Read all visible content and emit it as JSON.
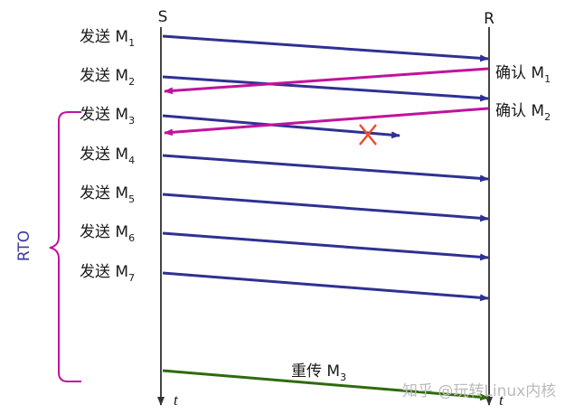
{
  "sender": "S",
  "receiver": "R",
  "sends": [
    {
      "text": "发送 M",
      "sub": "1"
    },
    {
      "text": "发送 M",
      "sub": "2"
    },
    {
      "text": "发送 M",
      "sub": "3"
    },
    {
      "text": "发送 M",
      "sub": "4"
    },
    {
      "text": "发送 M",
      "sub": "5"
    },
    {
      "text": "发送 M",
      "sub": "6"
    },
    {
      "text": "发送 M",
      "sub": "7"
    }
  ],
  "acks": [
    {
      "text": "确认 M",
      "sub": "1"
    },
    {
      "text": "确认 M",
      "sub": "2"
    }
  ],
  "timeout": "RTO",
  "retransmit": {
    "text": "重传 M",
    "sub": "3"
  },
  "time_labels": [
    "t",
    "t"
  ],
  "watermark": "知乎 @玩转Linux内核"
}
